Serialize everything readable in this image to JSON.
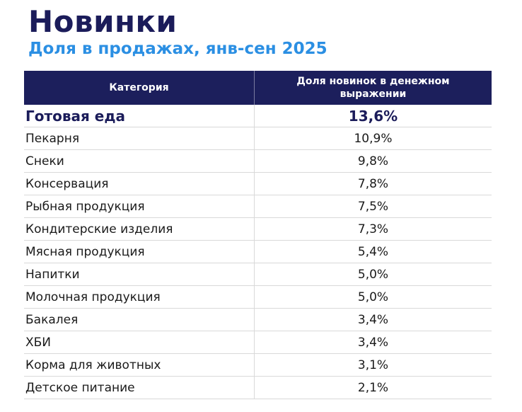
{
  "header": {
    "title": "Новинки",
    "subtitle": "Доля в продажах, янв-сен 2025"
  },
  "table": {
    "columns": [
      "Категория",
      "Доля новинок в денежном выражении"
    ],
    "rows": [
      [
        "Готовая еда",
        "13,6%"
      ],
      [
        "Пекарня",
        "10,9%"
      ],
      [
        "Снеки",
        "9,8%"
      ],
      [
        "Консервация",
        "7,8%"
      ],
      [
        "Рыбная продукция",
        "7,5%"
      ],
      [
        "Кондитерские изделия",
        "7,3%"
      ],
      [
        "Мясная продукция",
        "5,4%"
      ],
      [
        "Напитки",
        "5,0%"
      ],
      [
        "Молочная продукция",
        "5,0%"
      ],
      [
        "Бакалея",
        "3,4%"
      ],
      [
        "ХБИ",
        "3,4%"
      ],
      [
        "Корма для животных",
        "3,1%"
      ],
      [
        "Детское питание",
        "2,1%"
      ]
    ]
  }
}
